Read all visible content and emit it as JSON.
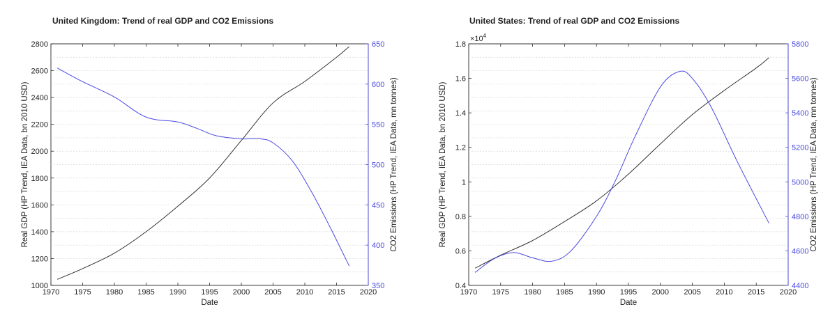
{
  "chart_data": [
    {
      "type": "line",
      "title": "United Kingdom: Trend of real GDP and CO2 Emissions",
      "xlabel": "Date",
      "ylabel": "Real GDP (HP Trend, IEA Data, bn 2010 USD)",
      "y2label": "CO2 Emissions (HP Trend, IEA Data, mn tonnes)",
      "xlim": [
        1970,
        2020
      ],
      "ylim": [
        1000,
        2800
      ],
      "y2lim": [
        350,
        650
      ],
      "x_ticks": [
        "1970",
        "1975",
        "1980",
        "1985",
        "1990",
        "1995",
        "2000",
        "2005",
        "2010",
        "2015",
        "2020"
      ],
      "y_ticks": [
        "1000",
        "1200",
        "1400",
        "1600",
        "1800",
        "2000",
        "2200",
        "2400",
        "2600",
        "2800"
      ],
      "y2_ticks": [
        "350",
        "400",
        "450",
        "500",
        "550",
        "600",
        "650"
      ],
      "y_exponent": "",
      "grid": "horizontal dashed",
      "colors": {
        "gdp": "#333333",
        "co2": "#4a4ae0",
        "grid": "#d6d6d6"
      },
      "series": [
        {
          "axis": "left",
          "x": [
            1971,
            1975,
            1980,
            1985,
            1990,
            1995,
            2000,
            2005,
            2010,
            2015,
            2017
          ],
          "values": [
            1045,
            1125,
            1240,
            1400,
            1590,
            1800,
            2080,
            2360,
            2520,
            2700,
            2780
          ]
        },
        {
          "axis": "right",
          "x": [
            1971,
            1975,
            1980,
            1985,
            1990,
            1993,
            1996,
            2000,
            2003,
            2005,
            2008,
            2011,
            2014,
            2017
          ],
          "values": [
            620,
            603,
            584,
            559,
            553,
            545,
            536,
            532,
            532,
            527,
            505,
            467,
            422,
            374
          ]
        }
      ]
    },
    {
      "type": "line",
      "title": "United States: Trend of real GDP and CO2 Emissions",
      "xlabel": "Date",
      "ylabel": "Real GDP (HP Trend, IEA Data, bn 2010 USD)",
      "y2label": "CO2 Emissions (HP Trend, IEA Data, mn tonnes)",
      "xlim": [
        1970,
        2020
      ],
      "ylim": [
        0.4,
        1.8
      ],
      "y2lim": [
        4400,
        5800
      ],
      "x_ticks": [
        "1970",
        "1975",
        "1980",
        "1985",
        "1990",
        "1995",
        "2000",
        "2005",
        "2010",
        "2015",
        "2020"
      ],
      "y_ticks": [
        "0.4",
        "0.6",
        "0.8",
        "1",
        "1.2",
        "1.4",
        "1.6",
        "1.8"
      ],
      "y2_ticks": [
        "4400",
        "4600",
        "4800",
        "5000",
        "5200",
        "5400",
        "5600",
        "5800"
      ],
      "y_exponent": "×10",
      "y_exponent_power": "4",
      "grid": "horizontal dashed",
      "colors": {
        "gdp": "#333333",
        "co2": "#4a4ae0",
        "grid": "#d6d6d6"
      },
      "series": [
        {
          "axis": "left",
          "x": [
            1971,
            1975,
            1980,
            1985,
            1990,
            1995,
            2000,
            2005,
            2010,
            2015,
            2017
          ],
          "values": [
            0.5,
            0.575,
            0.66,
            0.77,
            0.89,
            1.045,
            1.22,
            1.39,
            1.53,
            1.66,
            1.72
          ]
        },
        {
          "axis": "right",
          "x": [
            1971,
            1974,
            1977,
            1980,
            1983,
            1986,
            1990,
            1993,
            1996,
            2000,
            2003,
            2005,
            2008,
            2012,
            2017
          ],
          "values": [
            4475,
            4555,
            4590,
            4560,
            4540,
            4600,
            4800,
            5010,
            5260,
            5550,
            5640,
            5600,
            5430,
            5120,
            4760
          ]
        }
      ]
    }
  ]
}
